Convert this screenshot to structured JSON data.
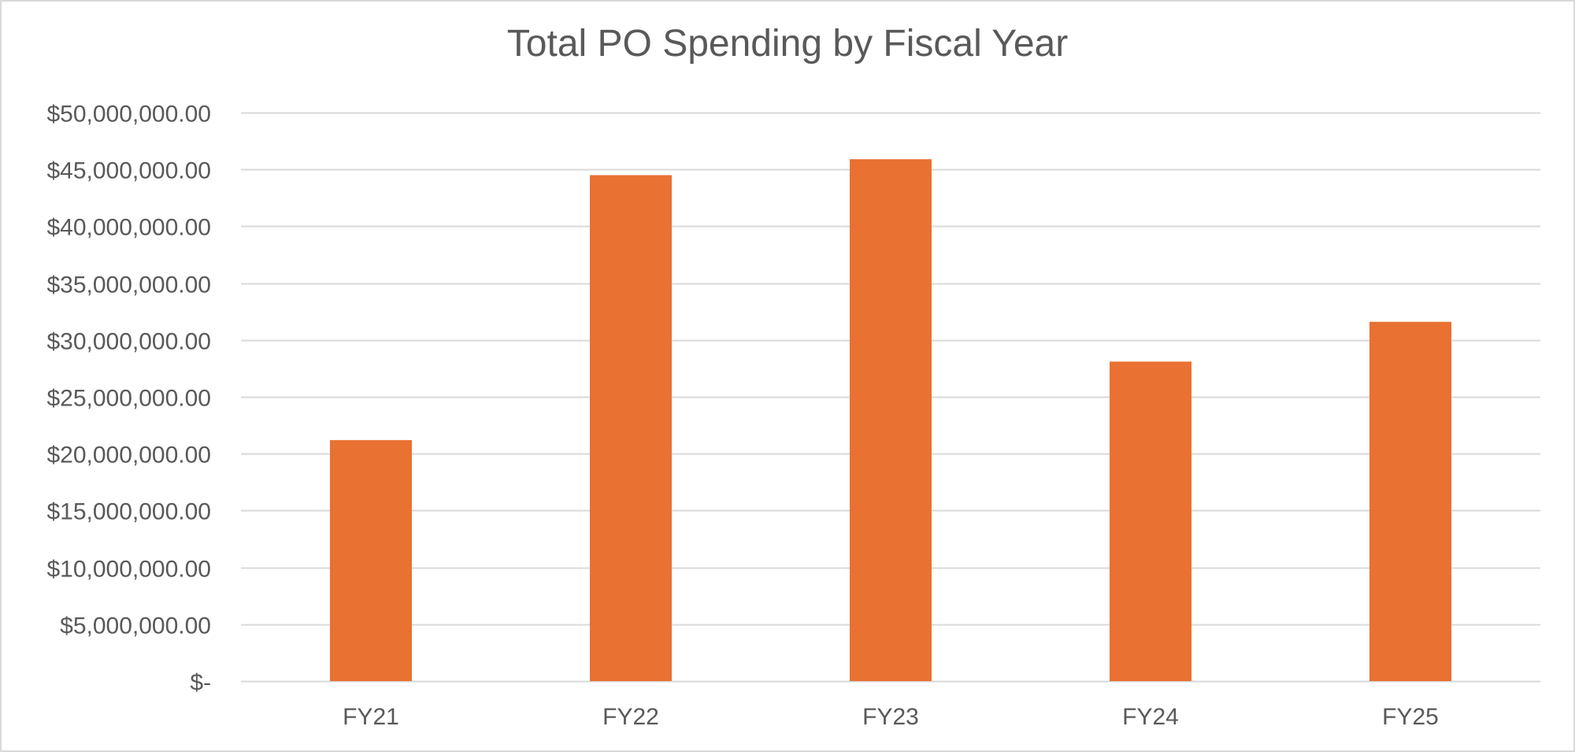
{
  "chart_data": {
    "type": "bar",
    "title": "Total PO Spending by Fiscal Year",
    "xlabel": "",
    "ylabel": "",
    "categories": [
      "FY21",
      "FY22",
      "FY23",
      "FY24",
      "FY25"
    ],
    "values": [
      21200000,
      44500000,
      45900000,
      28100000,
      31600000
    ],
    "ylim": [
      0,
      50000000
    ],
    "yticks": [
      0,
      5000000,
      10000000,
      15000000,
      20000000,
      25000000,
      30000000,
      35000000,
      40000000,
      45000000,
      50000000
    ],
    "ytick_labels": [
      "$-",
      "$5,000,000.00",
      "$10,000,000.00",
      "$15,000,000.00",
      "$20,000,000.00",
      "$25,000,000.00",
      "$30,000,000.00",
      "$35,000,000.00",
      "$40,000,000.00",
      "$45,000,000.00",
      "$50,000,000.00"
    ],
    "grid": true,
    "legend": "none",
    "bar_color": "#e97132",
    "grid_color": "#d9d9d9",
    "text_color": "#595959"
  }
}
